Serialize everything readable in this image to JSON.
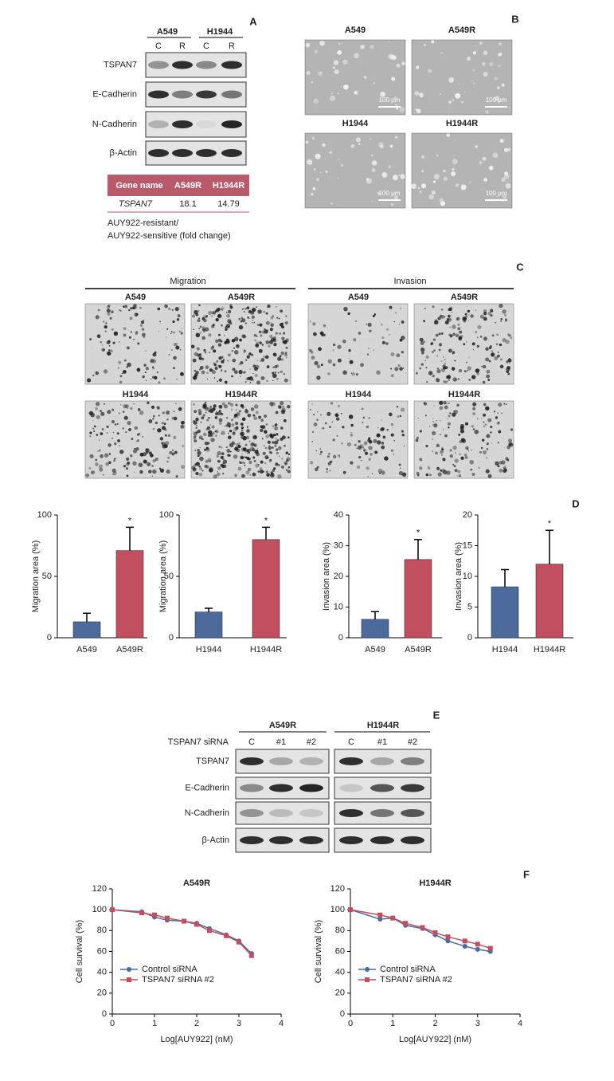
{
  "panel_labels": [
    "A",
    "B",
    "C",
    "D",
    "E",
    "F"
  ],
  "blot_a": {
    "groups": [
      "A549",
      "H1944"
    ],
    "lanes": [
      "C",
      "R",
      "C",
      "R"
    ],
    "rows": [
      "TSPAN7",
      "E-Cadherin",
      "N-Cadherin",
      "β-Actin"
    ]
  },
  "table": {
    "header": [
      "Gene name",
      "A549R",
      "H1944R"
    ],
    "rows": [
      [
        "TSPAN7",
        18.1,
        14.79
      ]
    ],
    "caption": [
      "AUY922-resistant/",
      "AUY922-sensitive (fold change)"
    ]
  },
  "micrographs_b": {
    "titles": [
      "A549",
      "A549R",
      "H1944",
      "H1944R"
    ],
    "scale": "100 μm"
  },
  "micrographs_c": {
    "groups": [
      "Migration",
      "Invasion"
    ],
    "titles": [
      [
        "A549",
        "A549R",
        "H1944",
        "H1944R"
      ],
      [
        "A549",
        "A549R",
        "H1944",
        "H1944R"
      ]
    ]
  },
  "blot_e": {
    "label": "TSPAN7 siRNA",
    "groups": [
      "A549R",
      "H1944R"
    ],
    "lanes": [
      "C",
      "#1",
      "#2",
      "C",
      "#1",
      "#2"
    ],
    "rows": [
      "TSPAN7",
      "E-Cadherin",
      "N-Cadherin",
      "β-Actin"
    ]
  },
  "chart_data": [
    {
      "type": "bar",
      "y_label": "Migration area (%)",
      "categories": [
        "A549",
        "A549R"
      ],
      "values": [
        13,
        71
      ],
      "errors": [
        7,
        19
      ],
      "colors": [
        "#4d6a9c",
        "#c14f5f"
      ],
      "ylim": [
        0,
        100
      ],
      "yticks": [
        0,
        50,
        100
      ],
      "annotation": "*"
    },
    {
      "type": "bar",
      "y_label": "Migration area (%)",
      "categories": [
        "H1944",
        "H1944R"
      ],
      "values": [
        21,
        80
      ],
      "errors": [
        3,
        10
      ],
      "colors": [
        "#4d6a9c",
        "#c14f5f"
      ],
      "ylim": [
        0,
        100
      ],
      "yticks": [
        0,
        50,
        100
      ],
      "annotation": "*"
    },
    {
      "type": "bar",
      "y_label": "Invasion area (%)",
      "categories": [
        "A549",
        "A549R"
      ],
      "values": [
        6,
        25.5
      ],
      "errors": [
        2.5,
        6.5
      ],
      "colors": [
        "#4d6a9c",
        "#c14f5f"
      ],
      "ylim": [
        0,
        40
      ],
      "yticks": [
        0,
        10,
        20,
        30,
        40
      ],
      "annotation": "*"
    },
    {
      "type": "bar",
      "y_label": "Invasion area (%)",
      "categories": [
        "H1944",
        "H1944R"
      ],
      "values": [
        8.3,
        12
      ],
      "errors": [
        2.8,
        5.5
      ],
      "colors": [
        "#4d6a9c",
        "#c14f5f"
      ],
      "ylim": [
        0,
        20
      ],
      "yticks": [
        0,
        5,
        10,
        15,
        20
      ],
      "annotation": "*"
    },
    {
      "type": "line",
      "title": "A549R",
      "x_label": "Log[AUY922] (nM)",
      "y_label": "Cell survival (%)",
      "x": [
        0,
        0.7,
        1,
        1.3,
        1.7,
        2,
        2.3,
        2.7,
        3,
        3.3
      ],
      "series": [
        {
          "name": "Control siRNA",
          "color": "#4d6a9c",
          "values": [
            100,
            98,
            93,
            90,
            89,
            87,
            82,
            76,
            70,
            58
          ]
        },
        {
          "name": "TSPAN7 siRNA #2",
          "color": "#c14f5f",
          "values": [
            100,
            97,
            95,
            92,
            89,
            86,
            80,
            75,
            69,
            56
          ]
        }
      ],
      "xlim": [
        0,
        4
      ],
      "xticks": [
        0,
        1,
        2,
        3,
        4
      ],
      "ylim": [
        0,
        120
      ],
      "yticks": [
        0,
        20,
        40,
        60,
        80,
        100,
        120
      ],
      "legend": "lower left"
    },
    {
      "type": "line",
      "title": "H1944R",
      "x_label": "Log[AUY922] (nM)",
      "y_label": "Cell survival (%)",
      "x": [
        0,
        0.7,
        1,
        1.3,
        1.7,
        2,
        2.3,
        2.7,
        3,
        3.3
      ],
      "series": [
        {
          "name": "Control siRNA",
          "color": "#4d6a9c",
          "values": [
            100,
            91,
            92,
            85,
            82,
            76,
            70,
            65,
            62,
            60
          ]
        },
        {
          "name": "TSPAN7 siRNA #2",
          "color": "#c14f5f",
          "values": [
            100,
            95,
            92,
            87,
            83,
            78,
            74,
            70,
            67,
            63
          ]
        }
      ],
      "xlim": [
        0,
        4
      ],
      "xticks": [
        0,
        1,
        2,
        3,
        4
      ],
      "ylim": [
        0,
        120
      ],
      "yticks": [
        0,
        20,
        40,
        60,
        80,
        100,
        120
      ],
      "legend": "lower left"
    }
  ]
}
